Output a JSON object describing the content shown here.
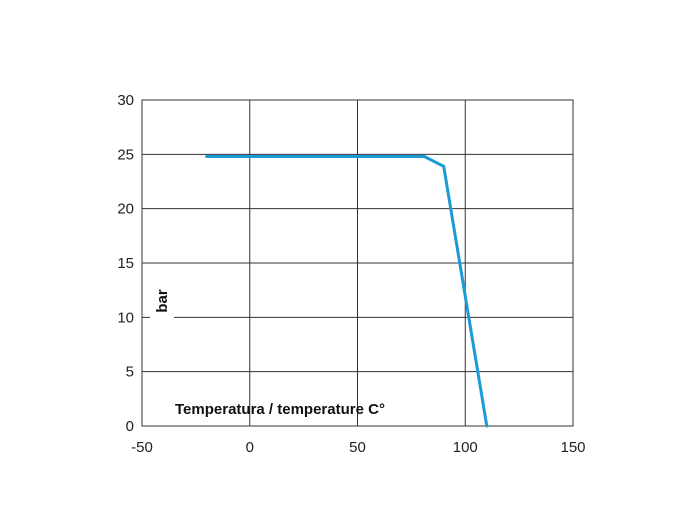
{
  "chart_data": {
    "type": "line",
    "title": "",
    "xlabel": "Temperatura / temperature C°",
    "ylabel": "bar",
    "xlim": [
      -50,
      150
    ],
    "ylim": [
      0,
      30
    ],
    "x_ticks": [
      -50,
      0,
      50,
      100,
      150
    ],
    "y_ticks": [
      0,
      5,
      10,
      15,
      20,
      25,
      30
    ],
    "x_tick_labels": [
      "-50",
      "0",
      "50",
      "100",
      "150"
    ],
    "y_tick_labels": [
      "0",
      "5",
      "10",
      "15",
      "20",
      "25",
      "30"
    ],
    "grid": true,
    "legend": "none",
    "series": [
      {
        "color": "#1a9ad6",
        "points": [
          {
            "x": -20,
            "y": 24.8
          },
          {
            "x": 81,
            "y": 24.8
          },
          {
            "x": 90,
            "y": 23.9
          },
          {
            "x": 110,
            "y": 0
          }
        ]
      }
    ]
  }
}
